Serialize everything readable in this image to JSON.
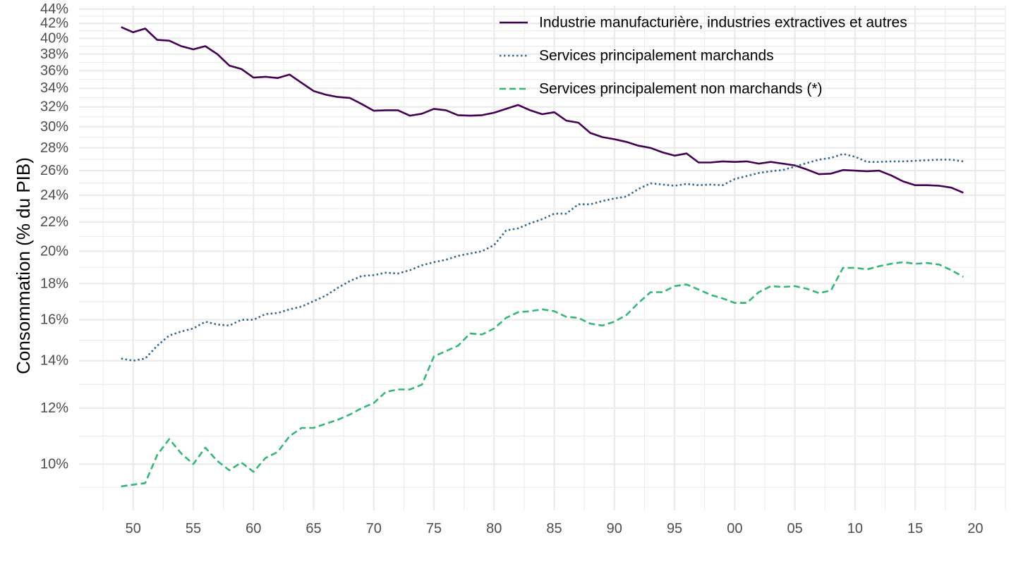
{
  "chart_data": {
    "type": "line",
    "title": "",
    "xlabel": "",
    "ylabel": "Consommation (% du PIB)",
    "y_scale": "log",
    "ylim": [
      8.6,
      44.5
    ],
    "xlim": [
      1945.5,
      2022.5
    ],
    "x_ticks": [
      {
        "value": 1950,
        "label": "50"
      },
      {
        "value": 1955,
        "label": "55"
      },
      {
        "value": 1960,
        "label": "60"
      },
      {
        "value": 1965,
        "label": "65"
      },
      {
        "value": 1970,
        "label": "70"
      },
      {
        "value": 1975,
        "label": "75"
      },
      {
        "value": 1980,
        "label": "80"
      },
      {
        "value": 1985,
        "label": "85"
      },
      {
        "value": 1990,
        "label": "90"
      },
      {
        "value": 1995,
        "label": "95"
      },
      {
        "value": 2000,
        "label": "00"
      },
      {
        "value": 2005,
        "label": "05"
      },
      {
        "value": 2010,
        "label": "10"
      },
      {
        "value": 2015,
        "label": "15"
      },
      {
        "value": 2020,
        "label": "20"
      }
    ],
    "y_ticks": [
      {
        "value": 10,
        "label": "10%"
      },
      {
        "value": 12,
        "label": "12%"
      },
      {
        "value": 14,
        "label": "14%"
      },
      {
        "value": 16,
        "label": "16%"
      },
      {
        "value": 18,
        "label": "18%"
      },
      {
        "value": 20,
        "label": "20%"
      },
      {
        "value": 22,
        "label": "22%"
      },
      {
        "value": 24,
        "label": "24%"
      },
      {
        "value": 26,
        "label": "26%"
      },
      {
        "value": 28,
        "label": "28%"
      },
      {
        "value": 30,
        "label": "30%"
      },
      {
        "value": 32,
        "label": "32%"
      },
      {
        "value": 34,
        "label": "34%"
      },
      {
        "value": 36,
        "label": "36%"
      },
      {
        "value": 38,
        "label": "38%"
      },
      {
        "value": 40,
        "label": "40%"
      },
      {
        "value": 42,
        "label": "42%"
      },
      {
        "value": 44,
        "label": "44%"
      }
    ],
    "x_start": 1949,
    "series": [
      {
        "name": "Industrie manufacturière, industries extractives et autres",
        "color": "#440154",
        "dash": "solid",
        "values": [
          41.5,
          40.8,
          41.3,
          39.8,
          39.7,
          39.0,
          38.6,
          39.0,
          38.0,
          36.6,
          36.2,
          35.2,
          35.3,
          35.15,
          35.55,
          34.6,
          33.7,
          33.3,
          33.05,
          32.95,
          32.3,
          31.6,
          31.65,
          31.65,
          31.1,
          31.3,
          31.8,
          31.65,
          31.15,
          31.1,
          31.15,
          31.4,
          31.8,
          32.2,
          31.65,
          31.25,
          31.45,
          30.6,
          30.4,
          29.4,
          29.0,
          28.8,
          28.55,
          28.2,
          28.0,
          27.6,
          27.3,
          27.5,
          26.7,
          26.7,
          26.8,
          26.75,
          26.8,
          26.6,
          26.75,
          26.6,
          26.45,
          26.1,
          25.7,
          25.75,
          26.05,
          26.0,
          25.95,
          26.0,
          25.6,
          25.1,
          24.8,
          24.8,
          24.75,
          24.6,
          24.2
        ]
      },
      {
        "name": "Services principalement marchands",
        "color": "#31688E",
        "dash": "dotted",
        "values": [
          14.1,
          14.0,
          14.1,
          14.7,
          15.2,
          15.4,
          15.55,
          15.9,
          15.75,
          15.7,
          16.0,
          16.0,
          16.3,
          16.35,
          16.55,
          16.7,
          17.0,
          17.3,
          17.75,
          18.15,
          18.45,
          18.5,
          18.65,
          18.6,
          18.8,
          19.1,
          19.3,
          19.45,
          19.7,
          19.85,
          20.0,
          20.4,
          21.4,
          21.55,
          21.9,
          22.2,
          22.6,
          22.6,
          23.3,
          23.3,
          23.55,
          23.75,
          23.9,
          24.5,
          24.95,
          24.85,
          24.75,
          24.9,
          24.8,
          24.85,
          24.8,
          25.3,
          25.55,
          25.8,
          25.95,
          26.05,
          26.35,
          26.65,
          26.95,
          27.1,
          27.45,
          27.2,
          26.75,
          26.75,
          26.8,
          26.8,
          26.85,
          26.9,
          26.95,
          26.95,
          26.8
        ]
      },
      {
        "name": "Services principalement non marchands (*)",
        "color": "#35B779",
        "dash": "dashed",
        "values": [
          9.3,
          9.35,
          9.4,
          10.3,
          10.85,
          10.35,
          10.0,
          10.55,
          10.1,
          9.8,
          10.05,
          9.75,
          10.2,
          10.4,
          10.95,
          11.25,
          11.25,
          11.4,
          11.55,
          11.75,
          12.0,
          12.2,
          12.65,
          12.75,
          12.75,
          12.95,
          14.2,
          14.45,
          14.7,
          15.3,
          15.25,
          15.55,
          16.1,
          16.4,
          16.45,
          16.55,
          16.45,
          16.15,
          16.1,
          15.8,
          15.7,
          15.9,
          16.25,
          16.9,
          17.5,
          17.5,
          17.85,
          17.95,
          17.65,
          17.35,
          17.15,
          16.9,
          16.9,
          17.5,
          17.85,
          17.8,
          17.85,
          17.7,
          17.45,
          17.6,
          18.95,
          18.95,
          18.85,
          19.05,
          19.2,
          19.3,
          19.2,
          19.25,
          19.15,
          18.8,
          18.4
        ]
      }
    ],
    "legend_position": "top-right"
  }
}
